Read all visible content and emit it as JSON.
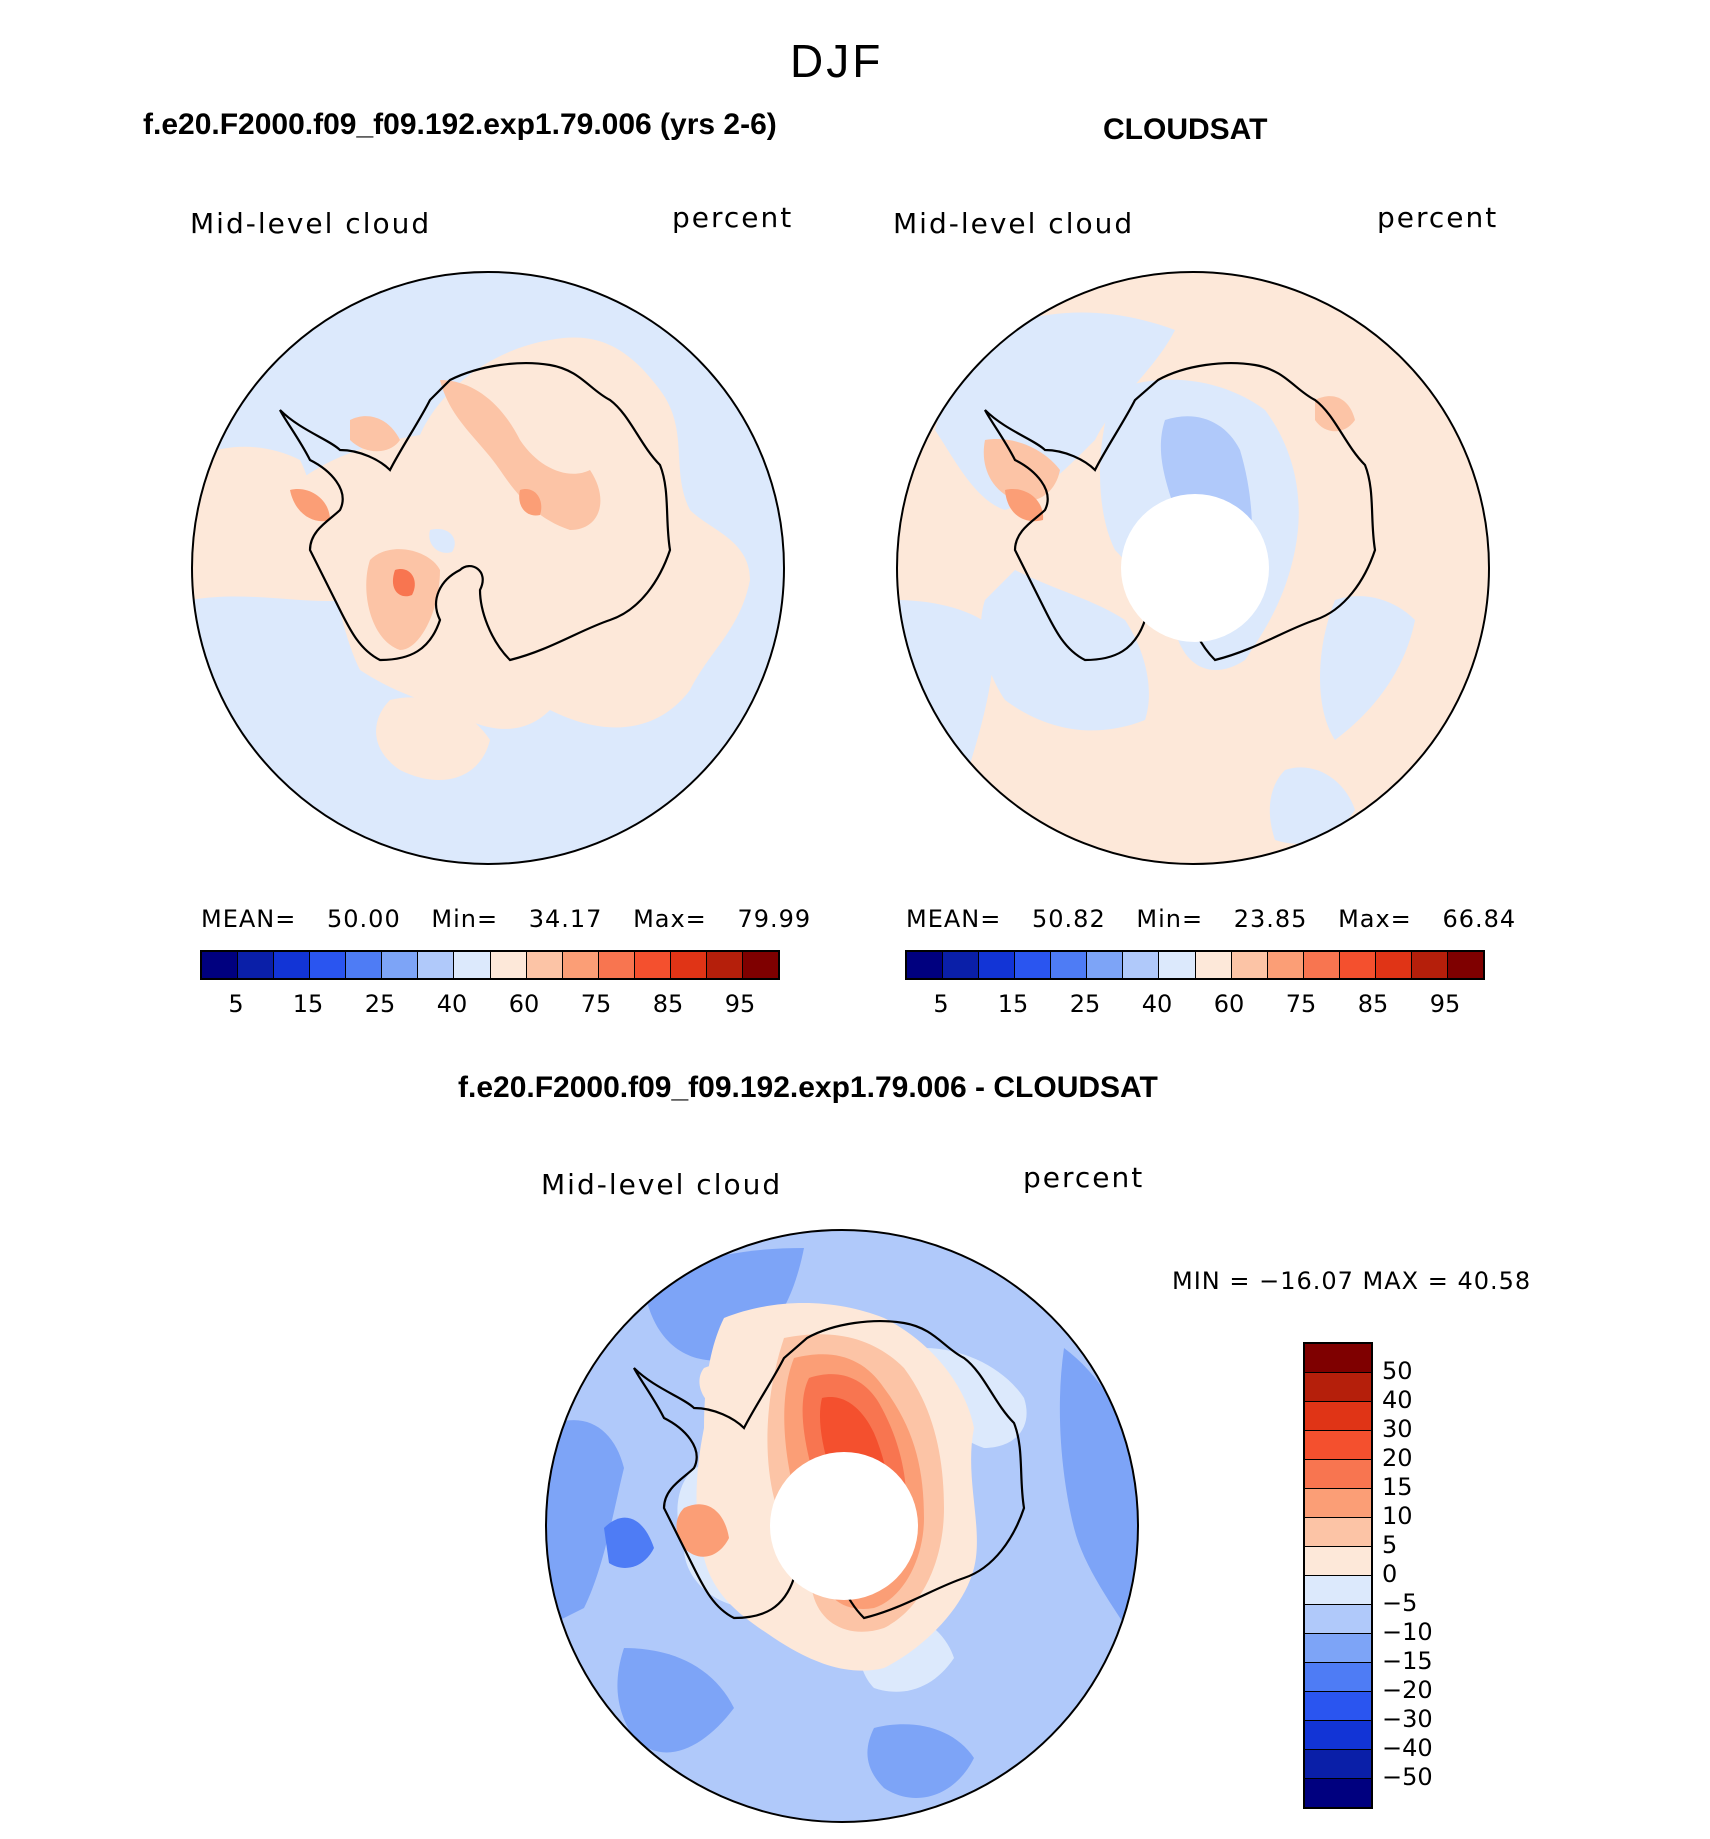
{
  "season": "DJF",
  "panels": {
    "model": {
      "title": "f.e20.F2000.f09_f09.192.exp1.79.006 (yrs 2-6)",
      "variable": "Mid-level cloud",
      "units": "percent",
      "stats": {
        "mean_label": "MEAN=",
        "mean": "50.00",
        "min_label": "Min=",
        "min": "34.17",
        "max_label": "Max=",
        "max": "79.99"
      }
    },
    "obs": {
      "title": "CLOUDSAT",
      "variable": "Mid-level cloud",
      "units": "percent",
      "stats": {
        "mean_label": "MEAN=",
        "mean": "50.82",
        "min_label": "Min=",
        "min": "23.85",
        "max_label": "Max=",
        "max": "66.84"
      }
    },
    "diff": {
      "title": "f.e20.F2000.f09_f09.192.exp1.79.006 - CLOUDSAT",
      "variable": "Mid-level cloud",
      "units": "percent",
      "minmax": "MIN = −16.07 MAX =   40.58"
    }
  },
  "abs_colorbar": {
    "colors": [
      "#00007f",
      "#0a1fa8",
      "#1234d6",
      "#2a55f0",
      "#4e7cf5",
      "#7da4f7",
      "#b0c9fa",
      "#dce9fc",
      "#fde8d9",
      "#fcc4a6",
      "#fb9e76",
      "#f87550",
      "#f4502e",
      "#e03416",
      "#b51f0b",
      "#7f0000"
    ],
    "ticks": [
      "5",
      "15",
      "25",
      "40",
      "60",
      "75",
      "85",
      "95"
    ]
  },
  "diff_colorbar": {
    "colors": [
      "#7f0000",
      "#b51f0b",
      "#e03416",
      "#f4502e",
      "#f87550",
      "#fb9e76",
      "#fcc4a6",
      "#fde8d9",
      "#dce9fc",
      "#b0c9fa",
      "#7da4f7",
      "#4e7cf5",
      "#2a55f0",
      "#1234d6",
      "#0a1fa8",
      "#00007f"
    ],
    "ticks": [
      "50",
      "40",
      "30",
      "20",
      "15",
      "10",
      "5",
      "0",
      "−5",
      "−10",
      "−15",
      "−20",
      "−30",
      "−40",
      "−50"
    ]
  },
  "map_colors": {
    "light_blue": "#dce9fc",
    "blue2": "#b0c9fa",
    "blue3": "#7da4f7",
    "blue4": "#4e7cf5",
    "light_red": "#fde8d9",
    "red2": "#fcc4a6",
    "red3": "#fb9e76",
    "red4": "#f87550",
    "red5": "#f4502e",
    "red6": "#e03416"
  }
}
